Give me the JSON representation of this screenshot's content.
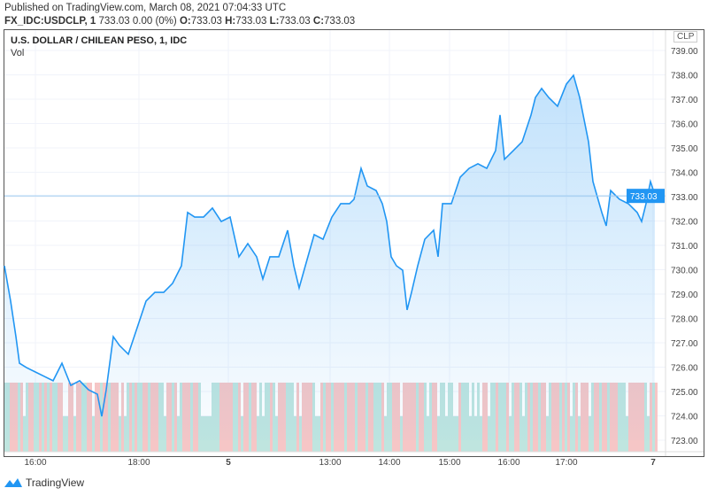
{
  "header": {
    "published": "Published on TradingView.com, March 08, 2021 07:04:33 UTC",
    "symbol": "FX_IDC:USDCLP, 1",
    "quote": " 733.03 0.00 (0%) ",
    "o_label": "O:",
    "o": "733.03",
    "h_label": "H:",
    "h": "733.03",
    "l_label": "L:",
    "l": "733.03",
    "c_label": "C:",
    "c": "733.03"
  },
  "chart_title": "U.S. DOLLAR / CHILEAN PESO, 1, IDC",
  "volume_label": "Vol",
  "currency_badge": "CLP",
  "footer_brand": "TradingView",
  "colors": {
    "line": "#2196f3",
    "vol_up": "#bfe5df",
    "vol_down": "#f6c6c6",
    "last_price": "#2196f3"
  },
  "chart_data": {
    "type": "line",
    "title": "U.S. DOLLAR / CHILEAN PESO, 1, IDC",
    "ylim": [
      722.5,
      739.5
    ],
    "yticks": [
      739,
      738,
      737,
      736,
      735,
      734,
      733,
      732,
      731,
      730,
      729,
      728,
      727,
      726,
      725,
      724,
      723
    ],
    "ytick_labels": [
      "739.00",
      "738.00",
      "737.00",
      "736.00",
      "735.00",
      "734.00",
      "733.00",
      "732.00",
      "731.00",
      "730.00",
      "729.00",
      "728.00",
      "727.00",
      "726.00",
      "725.00",
      "724.00",
      "723.00"
    ],
    "last_price": 733.03,
    "last_price_label": "733.03",
    "xlim": [
      0,
      737
    ],
    "xticks": [
      {
        "bar": 35,
        "label": "16:00"
      },
      {
        "bar": 152,
        "label": "18:00"
      },
      {
        "bar": 253,
        "label": "5",
        "bold": true
      },
      {
        "bar": 368,
        "label": "13:00"
      },
      {
        "bar": 435,
        "label": "14:00"
      },
      {
        "bar": 503,
        "label": "15:00"
      },
      {
        "bar": 570,
        "label": "16:00"
      },
      {
        "bar": 635,
        "label": "17:00"
      },
      {
        "bar": 733,
        "label": "7",
        "bold": true
      }
    ],
    "points": [
      [
        0,
        730.16
      ],
      [
        7,
        728.71
      ],
      [
        13,
        727.25
      ],
      [
        17,
        726.16
      ],
      [
        25,
        725.98
      ],
      [
        35,
        725.8
      ],
      [
        45,
        725.62
      ],
      [
        55,
        725.44
      ],
      [
        65,
        726.16
      ],
      [
        75,
        725.25
      ],
      [
        85,
        725.44
      ],
      [
        95,
        725.07
      ],
      [
        105,
        724.89
      ],
      [
        110,
        723.98
      ],
      [
        115,
        725.07
      ],
      [
        123,
        727.25
      ],
      [
        130,
        726.89
      ],
      [
        140,
        726.53
      ],
      [
        150,
        727.62
      ],
      [
        160,
        728.71
      ],
      [
        170,
        729.07
      ],
      [
        180,
        729.07
      ],
      [
        190,
        729.44
      ],
      [
        200,
        730.16
      ],
      [
        207,
        732.35
      ],
      [
        215,
        732.16
      ],
      [
        225,
        732.16
      ],
      [
        235,
        732.53
      ],
      [
        245,
        731.98
      ],
      [
        255,
        732.16
      ],
      [
        265,
        730.53
      ],
      [
        275,
        731.07
      ],
      [
        285,
        730.53
      ],
      [
        292,
        729.62
      ],
      [
        300,
        730.53
      ],
      [
        310,
        730.53
      ],
      [
        320,
        731.62
      ],
      [
        327,
        730.16
      ],
      [
        333,
        729.25
      ],
      [
        340,
        730.16
      ],
      [
        350,
        731.44
      ],
      [
        360,
        731.25
      ],
      [
        370,
        732.16
      ],
      [
        380,
        732.71
      ],
      [
        390,
        732.71
      ],
      [
        395,
        732.89
      ],
      [
        403,
        734.16
      ],
      [
        410,
        733.44
      ],
      [
        420,
        733.25
      ],
      [
        427,
        732.71
      ],
      [
        432,
        731.98
      ],
      [
        437,
        730.53
      ],
      [
        443,
        730.16
      ],
      [
        450,
        729.98
      ],
      [
        455,
        728.35
      ],
      [
        460,
        729.07
      ],
      [
        467,
        730.16
      ],
      [
        475,
        731.25
      ],
      [
        485,
        731.62
      ],
      [
        490,
        730.53
      ],
      [
        495,
        732.71
      ],
      [
        505,
        732.71
      ],
      [
        515,
        733.8
      ],
      [
        525,
        734.16
      ],
      [
        535,
        734.35
      ],
      [
        545,
        734.16
      ],
      [
        555,
        734.89
      ],
      [
        560,
        736.35
      ],
      [
        565,
        734.53
      ],
      [
        575,
        734.89
      ],
      [
        585,
        735.25
      ],
      [
        595,
        736.35
      ],
      [
        600,
        737.07
      ],
      [
        607,
        737.44
      ],
      [
        615,
        737.07
      ],
      [
        625,
        736.71
      ],
      [
        635,
        737.62
      ],
      [
        643,
        737.98
      ],
      [
        650,
        737.07
      ],
      [
        660,
        735.25
      ],
      [
        665,
        733.62
      ],
      [
        675,
        732.35
      ],
      [
        680,
        731.8
      ],
      [
        685,
        733.25
      ],
      [
        695,
        732.89
      ],
      [
        705,
        732.71
      ],
      [
        715,
        732.35
      ],
      [
        720,
        731.98
      ],
      [
        725,
        732.71
      ],
      [
        730,
        733.62
      ],
      [
        735,
        733.07
      ]
    ]
  }
}
